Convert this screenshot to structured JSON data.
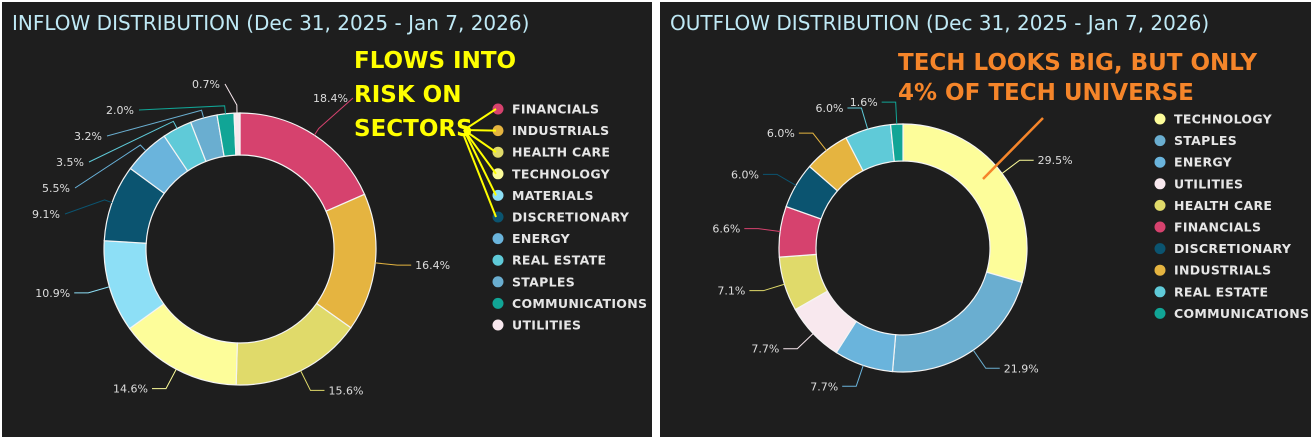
{
  "chart_data": [
    {
      "type": "pie",
      "donut": true,
      "title": "INFLOW DISTRIBUTION (Dec 31, 2025 - Jan 7, 2026)",
      "legend_position": "right",
      "categories": [
        "FINANCIALS",
        "INDUSTRIALS",
        "HEALTH CARE",
        "TECHNOLOGY",
        "MATERIALS",
        "DISCRETIONARY",
        "ENERGY",
        "REAL ESTATE",
        "STAPLES",
        "COMMUNICATIONS",
        "UTILITIES"
      ],
      "values": [
        18.4,
        16.4,
        15.6,
        14.6,
        10.9,
        9.1,
        5.5,
        3.5,
        3.2,
        2.0,
        0.7
      ],
      "labels": [
        "18.4%",
        "16.4%",
        "15.6%",
        "14.6%",
        "10.9%",
        "9.1%",
        "5.5%",
        "3.5%",
        "3.2%",
        "2.0%",
        "0.7%"
      ],
      "colors": [
        "#d6426e",
        "#e5b440",
        "#e0da6a",
        "#fdfd9a",
        "#8ddff6",
        "#0b5470",
        "#6ab4dc",
        "#5fcad8",
        "#6aaed0",
        "#11a596",
        "#f8e8ee"
      ],
      "annotation": {
        "lines": [
          "FLOWS INTO",
          "RISK ON",
          "SECTORS"
        ],
        "color": "#ffff00"
      }
    },
    {
      "type": "pie",
      "donut": true,
      "title": "OUTFLOW DISTRIBUTION (Dec 31, 2025 - Jan 7, 2026)",
      "legend_position": "right",
      "categories": [
        "TECHNOLOGY",
        "STAPLES",
        "ENERGY",
        "UTILITIES",
        "HEALTH CARE",
        "FINANCIALS",
        "DISCRETIONARY",
        "INDUSTRIALS",
        "REAL ESTATE",
        "COMMUNICATIONS"
      ],
      "values": [
        29.5,
        21.9,
        7.7,
        7.7,
        7.1,
        6.6,
        6.0,
        6.0,
        6.0,
        1.6
      ],
      "labels": [
        "29.5%",
        "21.9%",
        "7.7%",
        "7.7%",
        "7.1%",
        "6.6%",
        "6.0%",
        "6.0%",
        "6.0%",
        "1.6%"
      ],
      "colors": [
        "#fdfd9a",
        "#6aaed0",
        "#6ab4dc",
        "#f8e8ee",
        "#e0da6a",
        "#d6426e",
        "#0b5470",
        "#e5b440",
        "#5fcad8",
        "#11a596"
      ],
      "annotation": {
        "lines": [
          "TECH LOOKS BIG, BUT ONLY",
          "4% OF TECH UNIVERSE"
        ],
        "color": "#f5852a"
      }
    }
  ]
}
